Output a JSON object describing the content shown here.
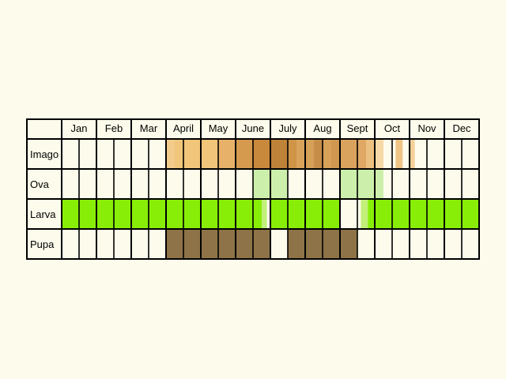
{
  "months": [
    "Jan",
    "Feb",
    "Mar",
    "April",
    "May",
    "June",
    "July",
    "Aug",
    "Sept",
    "Oct",
    "Nov",
    "Dec"
  ],
  "rows": [
    {
      "label": "Imago",
      "segments": [
        {
          "from": 6.0,
          "to": 6.5,
          "color": "#f3cc8c"
        },
        {
          "from": 6.5,
          "to": 9.0,
          "color": "#f1c67a"
        },
        {
          "from": 9.0,
          "to": 10.0,
          "color": "#e8b16a"
        },
        {
          "from": 10.0,
          "to": 11.0,
          "color": "#d69a4e"
        },
        {
          "from": 11.0,
          "to": 12.0,
          "color": "#c8893c"
        },
        {
          "from": 12.0,
          "to": 13.0,
          "color": "#be8338"
        },
        {
          "from": 13.0,
          "to": 13.5,
          "color": "#cf9448"
        },
        {
          "from": 13.5,
          "to": 14.0,
          "color": "#d9a25b"
        },
        {
          "from": 14.0,
          "to": 14.5,
          "color": "#d6a058"
        },
        {
          "from": 14.5,
          "to": 15.0,
          "color": "#c68d48"
        },
        {
          "from": 15.0,
          "to": 15.5,
          "color": "#d8a15a"
        },
        {
          "from": 15.5,
          "to": 16.0,
          "color": "#cf9750"
        },
        {
          "from": 16.0,
          "to": 17.0,
          "color": "#d9a35e"
        },
        {
          "from": 17.0,
          "to": 17.5,
          "color": "#dfa865"
        },
        {
          "from": 17.5,
          "to": 18.0,
          "color": "#ecc080"
        },
        {
          "from": 18.0,
          "to": 18.5,
          "color": "#f6d9a6"
        },
        {
          "from": 19.2,
          "to": 19.6,
          "color": "#f0c486"
        },
        {
          "from": 20.0,
          "to": 20.3,
          "color": "#f3cf98"
        }
      ]
    },
    {
      "label": "Ova",
      "segments": [
        {
          "from": 11.0,
          "to": 13.0,
          "color": "#ccf0ab"
        },
        {
          "from": 16.0,
          "to": 18.5,
          "color": "#ccf0ab"
        }
      ]
    },
    {
      "label": "Larva",
      "segments": [
        {
          "from": 0.0,
          "to": 11.5,
          "color": "#88ee08"
        },
        {
          "from": 11.5,
          "to": 11.8,
          "color": "#c2f07a"
        },
        {
          "from": 12.0,
          "to": 16.0,
          "color": "#88ee08"
        },
        {
          "from": 17.2,
          "to": 17.6,
          "color": "#c2f07a"
        },
        {
          "from": 17.6,
          "to": 24.0,
          "color": "#88ee08"
        }
      ]
    },
    {
      "label": "Pupa",
      "segments": [
        {
          "from": 6.0,
          "to": 12.0,
          "color": "#8d7347"
        },
        {
          "from": 13.0,
          "to": 17.0,
          "color": "#8d7347"
        }
      ]
    }
  ],
  "colors": {
    "background": "#fdfcec",
    "cell": "#fdfcec",
    "grid": "#000000"
  }
}
